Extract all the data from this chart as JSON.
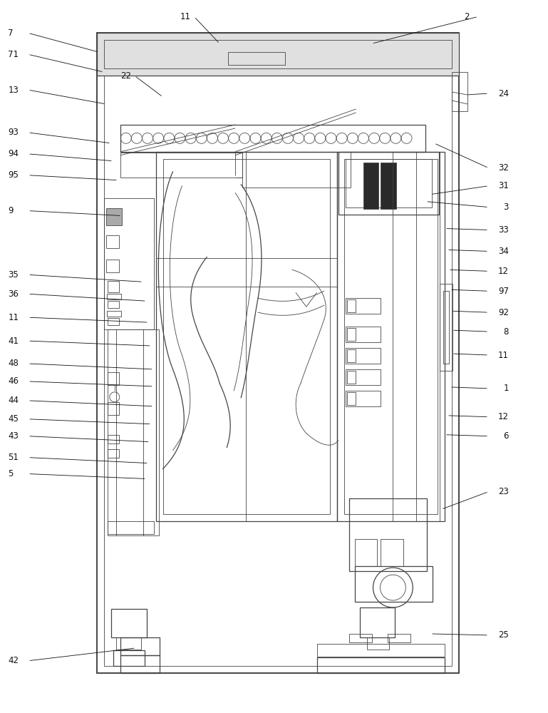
{
  "bg_color": "#ffffff",
  "line_color": "#444444",
  "thin_line": 0.6,
  "med_line": 0.9,
  "thick_line": 1.4,
  "label_fontsize": 8.5,
  "label_color": "#111111"
}
